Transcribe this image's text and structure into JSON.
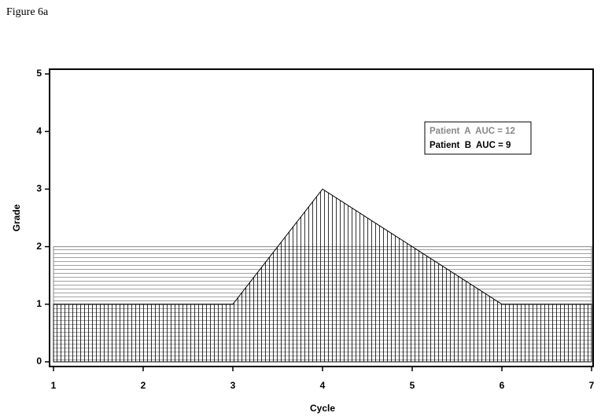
{
  "chart_data": {
    "type": "area",
    "title": "Figure 6a",
    "x_label": "Cycle",
    "y_label": "Grade",
    "x": [
      1,
      2,
      3,
      4,
      5,
      6,
      7
    ],
    "series": [
      {
        "name": "Patient  A  AUC = 12",
        "color": "#888888",
        "hatch": "horizontal",
        "values": [
          2,
          2,
          2,
          2,
          2,
          2,
          2
        ]
      },
      {
        "name": "Patient  B  AUC = 9",
        "color": "#000000",
        "hatch": "vertical",
        "values": [
          1,
          1,
          1,
          3,
          2,
          1,
          1
        ]
      }
    ],
    "xlim": [
      1,
      7
    ],
    "xticks": [
      1,
      2,
      3,
      4,
      5,
      6,
      7
    ],
    "ylim": [
      0,
      5
    ],
    "yticks": [
      0,
      1,
      2,
      3,
      4,
      5
    ]
  }
}
